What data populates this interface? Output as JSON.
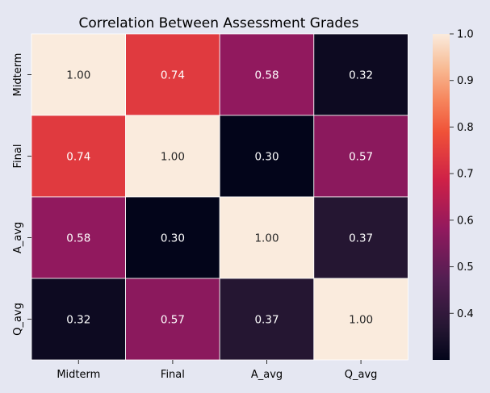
{
  "chart_data": {
    "type": "heatmap",
    "title": "Correlation Between Assessment Grades",
    "xlabel": "",
    "ylabel": "",
    "x_labels": [
      "Midterm",
      "Final",
      "A_avg",
      "Q_avg"
    ],
    "y_labels": [
      "Midterm",
      "Final",
      "A_avg",
      "Q_avg"
    ],
    "values": [
      [
        1.0,
        0.74,
        0.58,
        0.32
      ],
      [
        0.74,
        1.0,
        0.3,
        0.57
      ],
      [
        0.58,
        0.3,
        1.0,
        0.37
      ],
      [
        0.32,
        0.57,
        0.37,
        1.0
      ]
    ],
    "value_format": "0.00",
    "colorbar": {
      "vmin": 0.3,
      "vmax": 1.0,
      "ticks": [
        0.4,
        0.5,
        0.6,
        0.7,
        0.8,
        0.9,
        1.0
      ],
      "tick_labels": [
        "0.4",
        "0.5",
        "0.6",
        "0.7",
        "0.8",
        "0.9",
        "1.0"
      ],
      "colormap": "rocket"
    },
    "colors": {
      "background": "#e5e7f2",
      "cell_border": "#ffffff",
      "text_light": "#ffffff",
      "text_dark": "#262626"
    }
  }
}
